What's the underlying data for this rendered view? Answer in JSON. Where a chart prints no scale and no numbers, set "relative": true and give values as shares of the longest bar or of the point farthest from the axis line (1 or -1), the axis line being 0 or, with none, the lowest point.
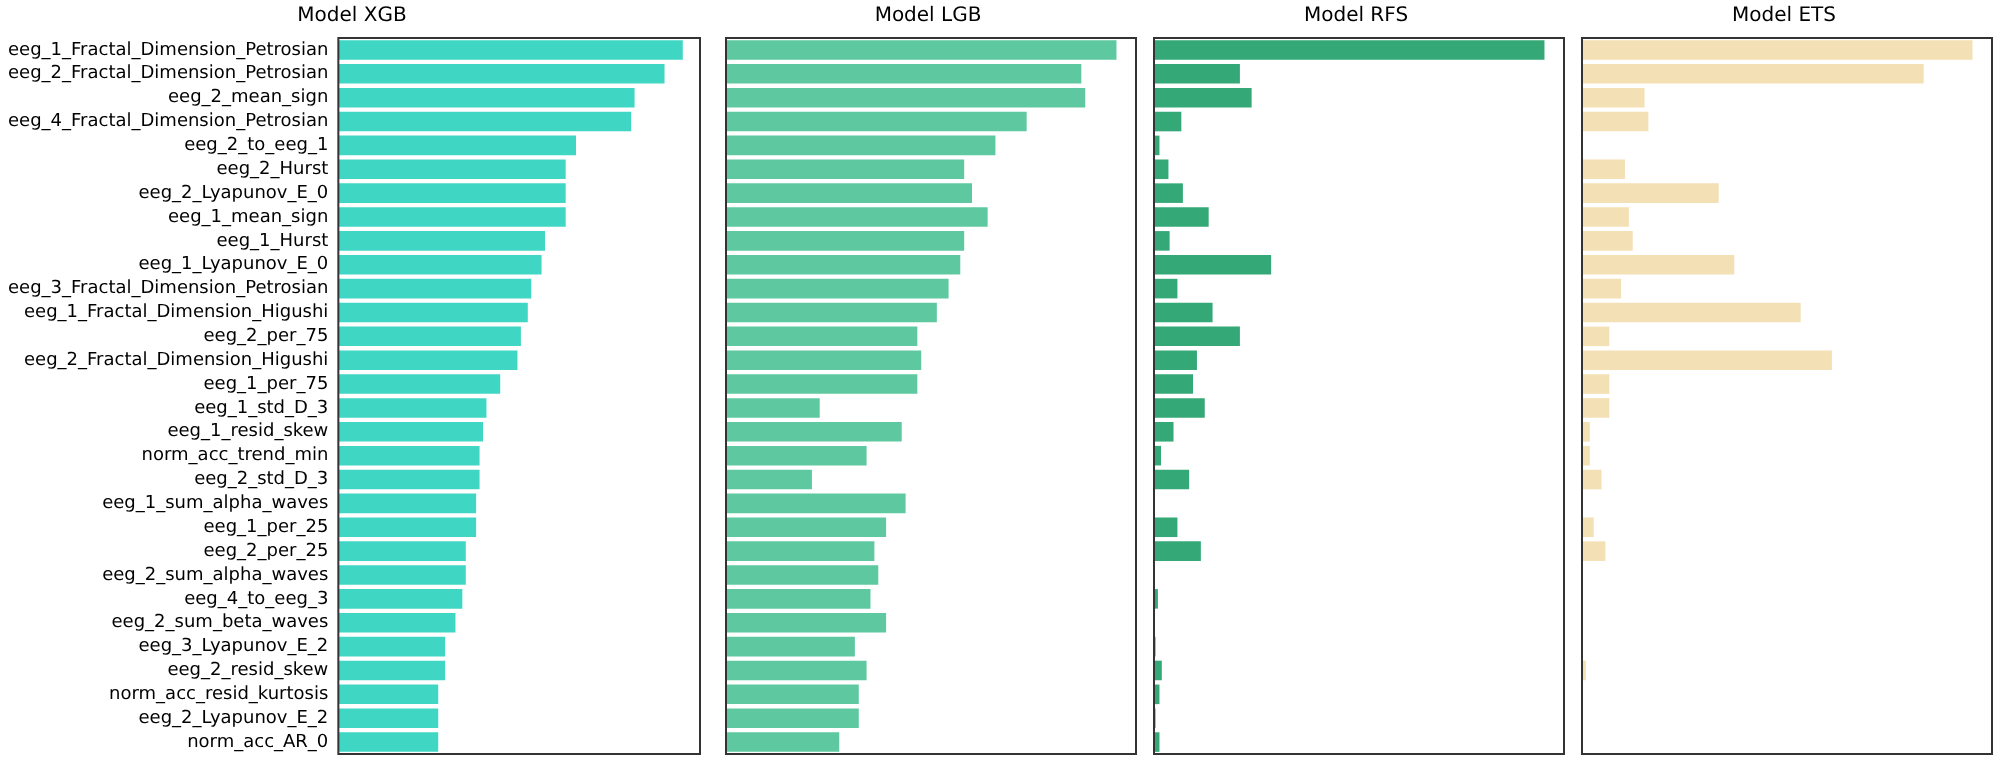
{
  "chart_data": [
    {
      "type": "bar",
      "title": "Model XGB",
      "orientation": "horizontal",
      "relative": true,
      "tick_labels": "y",
      "color": "#40d6c4",
      "categories": [
        "eeg_1_Fractal_Dimension_Petrosian",
        "eeg_2_Fractal_Dimension_Petrosian",
        "eeg_2_mean_sign",
        "eeg_4_Fractal_Dimension_Petrosian",
        "eeg_2_to_eeg_1",
        "eeg_2_Hurst",
        "eeg_2_Lyapunov_E_0",
        "eeg_1_mean_sign",
        "eeg_1_Hurst",
        "eeg_1_Lyapunov_E_0",
        "eeg_3_Fractal_Dimension_Petrosian",
        "eeg_1_Fractal_Dimension_Higushi",
        "eeg_2_per_75",
        "eeg_2_Fractal_Dimension_Higushi",
        "eeg_1_per_75",
        "eeg_1_std_D_3",
        "eeg_1_resid_skew",
        "norm_acc_trend_min",
        "eeg_2_std_D_3",
        "eeg_1_sum_alpha_waves",
        "eeg_1_per_25",
        "eeg_2_per_25",
        "eeg_2_sum_alpha_waves",
        "eeg_4_to_eeg_3",
        "eeg_2_sum_beta_waves",
        "eeg_3_Lyapunov_E_2",
        "eeg_2_resid_skew",
        "norm_acc_resid_kurtosis",
        "eeg_2_Lyapunov_E_2",
        "norm_acc_AR_0"
      ],
      "values": [
        1,
        0.947,
        0.86,
        0.85,
        0.69,
        0.66,
        0.66,
        0.66,
        0.6,
        0.59,
        0.56,
        0.55,
        0.53,
        0.52,
        0.47,
        0.43,
        0.42,
        0.41,
        0.41,
        0.4,
        0.4,
        0.37,
        0.37,
        0.36,
        0.34,
        0.31,
        0.31,
        0.29,
        0.29,
        0.29
      ]
    },
    {
      "type": "bar",
      "title": "Model LGB",
      "orientation": "horizontal",
      "relative": true,
      "tick_labels": false,
      "color": "#5ec9a0",
      "values": [
        1,
        0.91,
        0.92,
        0.77,
        0.69,
        0.61,
        0.63,
        0.67,
        0.61,
        0.6,
        0.57,
        0.54,
        0.49,
        0.5,
        0.49,
        0.24,
        0.45,
        0.36,
        0.22,
        0.46,
        0.41,
        0.38,
        0.39,
        0.37,
        0.41,
        0.33,
        0.36,
        0.34,
        0.34,
        0.29
      ]
    },
    {
      "type": "bar",
      "title": "Model RFS",
      "orientation": "horizontal",
      "relative": true,
      "tick_labels": false,
      "color": "#35a877",
      "values": [
        1,
        0.22,
        0.25,
        0.07,
        0.014,
        0.037,
        0.074,
        0.14,
        0.04,
        0.3,
        0.06,
        0.15,
        0.22,
        0.11,
        0.1,
        0.13,
        0.05,
        0.018,
        0.09,
        0,
        0.06,
        0.12,
        0,
        0.01,
        0,
        0.004,
        0.02,
        0.014,
        0.004,
        0.014
      ]
    },
    {
      "type": "bar",
      "title": "Model ETS",
      "orientation": "horizontal",
      "relative": true,
      "tick_labels": false,
      "color": "#f3e0b5",
      "values": [
        1,
        0.875,
        0.16,
        0.17,
        0,
        0.11,
        0.35,
        0.12,
        0.13,
        0.39,
        0.1,
        0.56,
        0.07,
        0.64,
        0.07,
        0.07,
        0.02,
        0.02,
        0.05,
        0,
        0.03,
        0.06,
        0,
        0,
        0,
        0,
        0.01,
        0,
        0,
        0
      ]
    }
  ]
}
